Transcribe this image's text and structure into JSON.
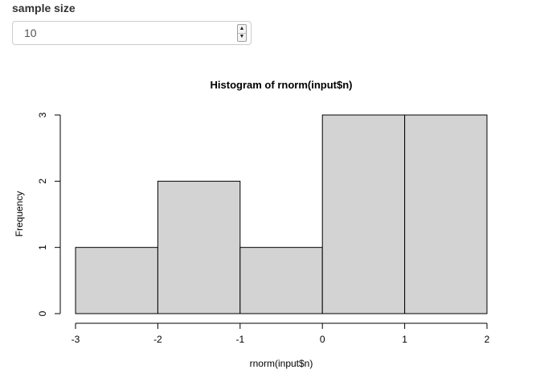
{
  "input": {
    "label": "sample size",
    "value": "10",
    "spinner_up_icon": "triangle-up-icon",
    "spinner_down_icon": "triangle-down-icon"
  },
  "chart_data": {
    "type": "bar",
    "title": "Histogram of rnorm(input$n)",
    "xlabel": "rnorm(input$n)",
    "ylabel": "Frequency",
    "bins": [
      {
        "x0": -3,
        "x1": -2,
        "count": 1
      },
      {
        "x0": -2,
        "x1": -1,
        "count": 2
      },
      {
        "x0": -1,
        "x1": 0,
        "count": 1
      },
      {
        "x0": 0,
        "x1": 1,
        "count": 3
      },
      {
        "x0": 1,
        "x1": 2,
        "count": 3
      }
    ],
    "xlim": [
      -3,
      2
    ],
    "ylim": [
      0,
      3
    ],
    "x_ticks": [
      -3,
      -2,
      -1,
      0,
      1,
      2
    ],
    "y_ticks": [
      0,
      1,
      2,
      3
    ],
    "bar_color": "#d3d3d3",
    "border_color": "#000000",
    "grid": false,
    "legend": "none"
  }
}
